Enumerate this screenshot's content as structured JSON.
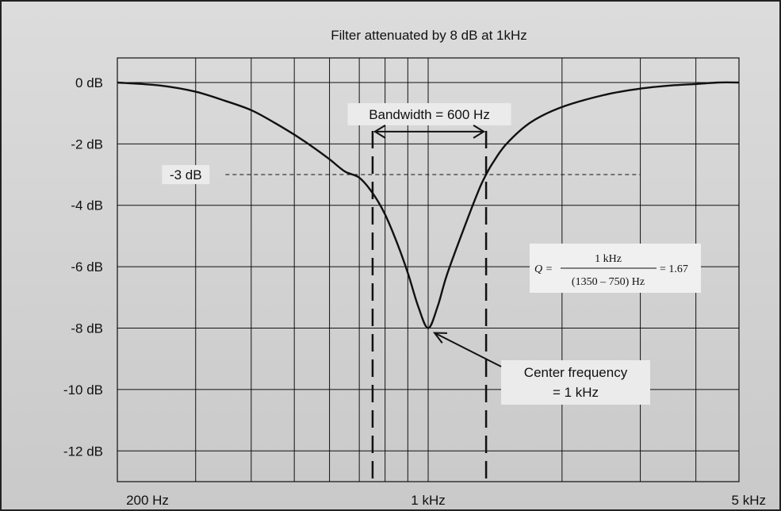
{
  "chart_data": {
    "type": "line",
    "title": "Filter attenuated by 8 dB at 1kHz",
    "xscale": "log",
    "xlim": [
      200,
      5000
    ],
    "ylim": [
      -13,
      0.8
    ],
    "grid": true,
    "x_ticks": [
      {
        "value": 200,
        "label": "200 Hz"
      },
      {
        "value": 1000,
        "label": "1 kHz"
      },
      {
        "value": 5000,
        "label": "5 kHz"
      }
    ],
    "x_gridlines": [
      200,
      300,
      400,
      500,
      600,
      700,
      800,
      900,
      1000,
      2000,
      3000,
      4000,
      5000
    ],
    "y_ticks": [
      {
        "value": 0,
        "label": "0 dB"
      },
      {
        "value": -2,
        "label": "-2 dB"
      },
      {
        "value": -4,
        "label": "-4 dB"
      },
      {
        "value": -6,
        "label": "-6 dB"
      },
      {
        "value": -8,
        "label": "-8 dB"
      },
      {
        "value": -10,
        "label": "-10 dB"
      },
      {
        "value": -12,
        "label": "-12 dB"
      }
    ],
    "series": [
      {
        "x": [
          200,
          250,
          300,
          350,
          400,
          450,
          500,
          550,
          600,
          650,
          700,
          750,
          800,
          850,
          900,
          950,
          1000,
          1050,
          1100,
          1200,
          1300,
          1350,
          1400,
          1500,
          1700,
          2000,
          2500,
          3000,
          3500,
          4000,
          4500,
          5000
        ],
        "y": [
          0,
          -0.1,
          -0.3,
          -0.6,
          -0.9,
          -1.3,
          -1.7,
          -2.1,
          -2.5,
          -2.9,
          -3.1,
          -3.6,
          -4.3,
          -5.2,
          -6.2,
          -7.3,
          -8,
          -7.3,
          -6.3,
          -4.8,
          -3.5,
          -3.0,
          -2.6,
          -2.0,
          -1.3,
          -0.8,
          -0.4,
          -0.2,
          -0.1,
          -0.05,
          0,
          0
        ]
      }
    ],
    "minus3db": {
      "label": "-3 dB",
      "value": -3,
      "x_from": 350,
      "x_to": 3000
    },
    "band_edges": [
      750,
      1350
    ],
    "bandwidth_label": "Bandwidth = 600 Hz",
    "center": {
      "x": 1000,
      "y": -8,
      "label_line1": "Center frequency",
      "label_line2": "= 1 kHz"
    },
    "q_formula": {
      "lhs": "Q =",
      "numerator": "1 kHz",
      "denominator": "(1350 – 750) Hz",
      "result": "= 1.67"
    }
  }
}
